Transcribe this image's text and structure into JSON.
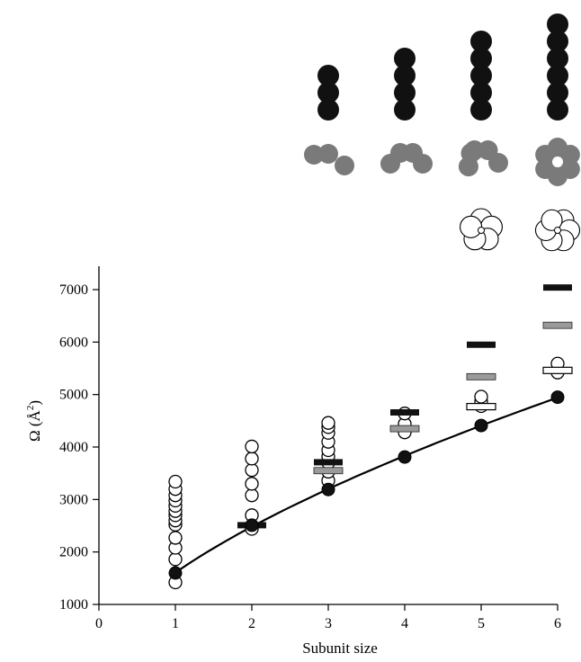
{
  "chart_data": {
    "type": "scatter",
    "title": "",
    "xlabel": "Subunit size",
    "ylabel": "Ω (Å²)",
    "ylabel_main": "Ω (Å",
    "ylabel_sup": "2",
    "ylabel_close": ")",
    "xlim": [
      0,
      6
    ],
    "ylim": [
      1000,
      7000
    ],
    "xticks": [
      0,
      1,
      2,
      3,
      4,
      5,
      6
    ],
    "yticks": [
      1000,
      2000,
      3000,
      4000,
      5000,
      6000,
      7000
    ],
    "grid": false,
    "legend": "none",
    "series": [
      {
        "kind": "open-circles",
        "points": [
          [
            1,
            1420
          ],
          [
            1,
            1860
          ],
          [
            1,
            2080
          ],
          [
            1,
            2270
          ],
          [
            1,
            2520
          ],
          [
            1,
            2600
          ],
          [
            1,
            2700
          ],
          [
            1,
            2780
          ],
          [
            1,
            2880
          ],
          [
            1,
            2980
          ],
          [
            1,
            3080
          ],
          [
            1,
            3200
          ],
          [
            1,
            3340
          ],
          [
            2,
            2440
          ],
          [
            2,
            2700
          ],
          [
            2,
            3080
          ],
          [
            2,
            3300
          ],
          [
            2,
            3560
          ],
          [
            2,
            3780
          ],
          [
            2,
            4010
          ],
          [
            3,
            3360
          ],
          [
            3,
            3530
          ],
          [
            3,
            3700
          ],
          [
            3,
            3820
          ],
          [
            3,
            3940
          ],
          [
            3,
            4100
          ],
          [
            3,
            4270
          ],
          [
            3,
            4380
          ],
          [
            3,
            4460
          ],
          [
            4,
            4280
          ],
          [
            4,
            4440
          ],
          [
            4,
            4640
          ],
          [
            5,
            4780
          ],
          [
            5,
            4870
          ],
          [
            5,
            4960
          ],
          [
            6,
            5420
          ],
          [
            6,
            5590
          ]
        ]
      },
      {
        "kind": "filled-circles-fit",
        "points": [
          [
            1,
            1600
          ],
          [
            2,
            2510
          ],
          [
            3,
            3190
          ],
          [
            4,
            3810
          ],
          [
            5,
            4410
          ],
          [
            6,
            4950
          ]
        ]
      },
      {
        "kind": "black-bars",
        "points": [
          [
            2,
            2510
          ],
          [
            3,
            3710
          ],
          [
            4,
            4660
          ],
          [
            5,
            5950
          ],
          [
            6,
            7040
          ]
        ]
      },
      {
        "kind": "gray-bars",
        "points": [
          [
            3,
            3550
          ],
          [
            4,
            4350
          ],
          [
            5,
            5340
          ],
          [
            6,
            6320
          ]
        ]
      },
      {
        "kind": "white-bars",
        "points": [
          [
            5,
            4770
          ],
          [
            6,
            5460
          ]
        ]
      }
    ]
  },
  "colors": {
    "black": "#111111",
    "gray": "#7a7a7a",
    "bar_gray": "#9a9a9a",
    "white": "#ffffff"
  },
  "schematics": [
    {
      "subunit": 3,
      "black_beads": 3,
      "gray": "arc-3",
      "white": "none"
    },
    {
      "subunit": 4,
      "black_beads": 4,
      "gray": "arc-4",
      "white": "none"
    },
    {
      "subunit": 5,
      "black_beads": 5,
      "gray": "open-ring-5",
      "white": "flower-5"
    },
    {
      "subunit": 6,
      "black_beads": 6,
      "gray": "ring-6",
      "white": "flower-6"
    }
  ]
}
